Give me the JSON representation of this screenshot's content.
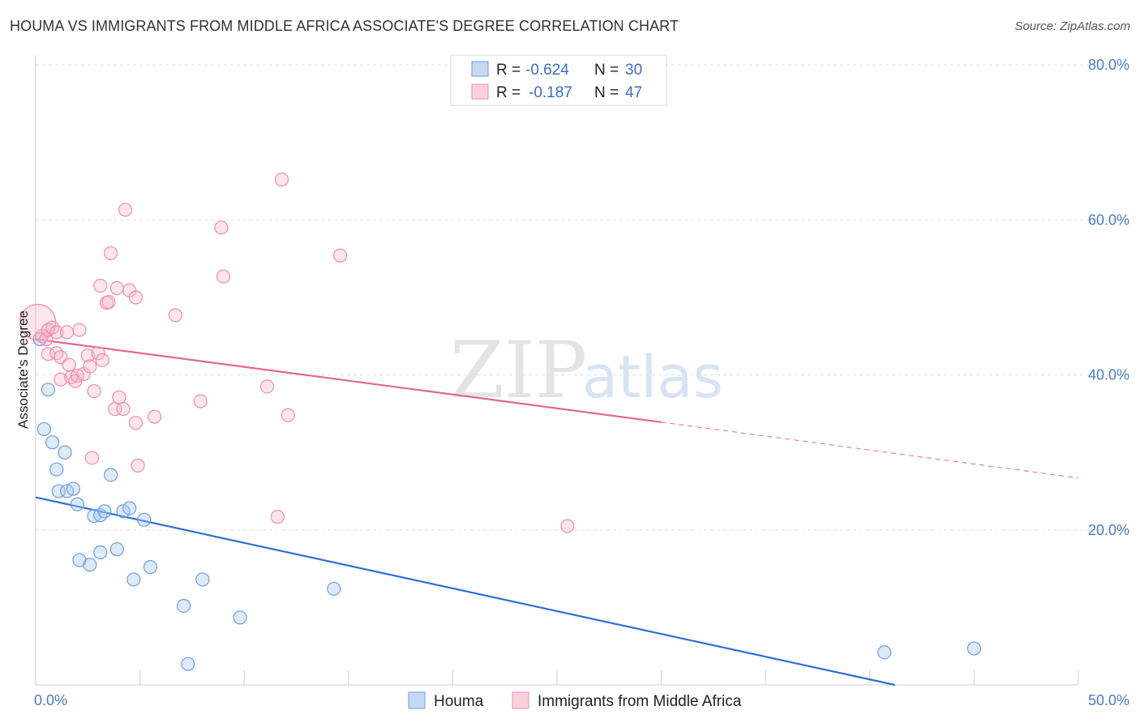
{
  "title": "HOUMA VS IMMIGRANTS FROM MIDDLE AFRICA ASSOCIATE'S DEGREE CORRELATION CHART",
  "source": "Source: ZipAtlas.com",
  "colors": {
    "houma": "#6b9de0",
    "houma_line": "#2f6fd0",
    "immigrants": "#f08cab",
    "immigrants_line": "#e0698f",
    "tick": "#4a7cc7"
  },
  "chart_data": {
    "type": "scatter",
    "ylabel": "Associate's Degree",
    "xlim": [
      0,
      50
    ],
    "ylim": [
      0,
      80
    ],
    "x_ticks": [
      "0.0%",
      "50.0%"
    ],
    "y_ticks": [
      {
        "value": 20,
        "label": "20.0%"
      },
      {
        "value": 40,
        "label": "40.0%"
      },
      {
        "value": 60,
        "label": "60.0%"
      },
      {
        "value": 80,
        "label": "80.0%"
      }
    ],
    "grid": true,
    "legend": {
      "position": "top-center",
      "entries": [
        {
          "r_label": "R =",
          "r_value": "-0.624",
          "n_label": "N =",
          "n_value": "30"
        },
        {
          "r_label": "R =",
          "r_value": "-0.187",
          "n_label": "N =",
          "n_value": "47"
        }
      ]
    },
    "series": [
      {
        "name": "Houma",
        "color": "#6b9de0",
        "trend": {
          "x0": 0,
          "y0": 24.2,
          "x1": 41.2,
          "y1": 0
        },
        "points": [
          {
            "x": 0.2,
            "y": 44.6
          },
          {
            "x": 0.6,
            "y": 38.1
          },
          {
            "x": 0.4,
            "y": 33.0
          },
          {
            "x": 0.8,
            "y": 31.3
          },
          {
            "x": 1.4,
            "y": 30.0
          },
          {
            "x": 1.0,
            "y": 27.8
          },
          {
            "x": 3.6,
            "y": 27.1
          },
          {
            "x": 1.1,
            "y": 25.0
          },
          {
            "x": 1.5,
            "y": 25.0
          },
          {
            "x": 1.8,
            "y": 25.3
          },
          {
            "x": 2.0,
            "y": 23.3
          },
          {
            "x": 2.8,
            "y": 21.8
          },
          {
            "x": 3.1,
            "y": 21.9
          },
          {
            "x": 3.3,
            "y": 22.4
          },
          {
            "x": 4.2,
            "y": 22.4
          },
          {
            "x": 4.5,
            "y": 22.8
          },
          {
            "x": 5.2,
            "y": 21.3
          },
          {
            "x": 3.1,
            "y": 17.1
          },
          {
            "x": 3.9,
            "y": 17.5
          },
          {
            "x": 2.1,
            "y": 16.1
          },
          {
            "x": 2.6,
            "y": 15.5
          },
          {
            "x": 5.5,
            "y": 15.2
          },
          {
            "x": 4.7,
            "y": 13.6
          },
          {
            "x": 8.0,
            "y": 13.6
          },
          {
            "x": 7.1,
            "y": 10.2
          },
          {
            "x": 9.8,
            "y": 8.7
          },
          {
            "x": 14.3,
            "y": 12.4
          },
          {
            "x": 7.3,
            "y": 2.7
          },
          {
            "x": 40.7,
            "y": 4.2
          },
          {
            "x": 45.0,
            "y": 4.7
          }
        ]
      },
      {
        "name": "Immigrants from Middle Africa",
        "color": "#f08cab",
        "trend": {
          "x0": 0,
          "y0": 44.6,
          "x1": 30.0,
          "y1": 33.9,
          "dash_x1": 50.0,
          "dash_y1": 26.7
        },
        "points": [
          {
            "x": 0.1,
            "y": 46.8,
            "big": true
          },
          {
            "x": 0.3,
            "y": 45.0
          },
          {
            "x": 0.5,
            "y": 44.6
          },
          {
            "x": 0.6,
            "y": 45.8
          },
          {
            "x": 0.8,
            "y": 46.1
          },
          {
            "x": 1.0,
            "y": 45.5
          },
          {
            "x": 0.6,
            "y": 42.7
          },
          {
            "x": 1.0,
            "y": 42.8
          },
          {
            "x": 1.2,
            "y": 42.3
          },
          {
            "x": 1.5,
            "y": 45.5
          },
          {
            "x": 2.1,
            "y": 45.8
          },
          {
            "x": 1.2,
            "y": 39.4
          },
          {
            "x": 1.6,
            "y": 41.3
          },
          {
            "x": 1.7,
            "y": 39.7
          },
          {
            "x": 1.9,
            "y": 39.2
          },
          {
            "x": 2.0,
            "y": 39.9
          },
          {
            "x": 2.3,
            "y": 40.1
          },
          {
            "x": 2.5,
            "y": 42.5
          },
          {
            "x": 2.6,
            "y": 41.1
          },
          {
            "x": 3.0,
            "y": 42.8
          },
          {
            "x": 3.2,
            "y": 41.9
          },
          {
            "x": 2.8,
            "y": 37.9
          },
          {
            "x": 3.4,
            "y": 49.3
          },
          {
            "x": 3.5,
            "y": 49.4
          },
          {
            "x": 3.1,
            "y": 51.5
          },
          {
            "x": 3.6,
            "y": 55.7
          },
          {
            "x": 3.9,
            "y": 51.2
          },
          {
            "x": 4.3,
            "y": 61.3
          },
          {
            "x": 4.5,
            "y": 50.9
          },
          {
            "x": 4.8,
            "y": 50.0
          },
          {
            "x": 3.8,
            "y": 35.6
          },
          {
            "x": 4.0,
            "y": 37.1
          },
          {
            "x": 4.2,
            "y": 35.6
          },
          {
            "x": 4.8,
            "y": 33.8
          },
          {
            "x": 5.7,
            "y": 34.6
          },
          {
            "x": 4.9,
            "y": 28.3
          },
          {
            "x": 2.7,
            "y": 29.3
          },
          {
            "x": 6.7,
            "y": 47.7
          },
          {
            "x": 7.9,
            "y": 36.6
          },
          {
            "x": 8.9,
            "y": 59.0
          },
          {
            "x": 9.0,
            "y": 52.7
          },
          {
            "x": 11.1,
            "y": 38.5
          },
          {
            "x": 11.6,
            "y": 21.7
          },
          {
            "x": 11.8,
            "y": 65.2
          },
          {
            "x": 12.1,
            "y": 34.8
          },
          {
            "x": 14.6,
            "y": 55.4
          },
          {
            "x": 25.5,
            "y": 20.5
          }
        ]
      }
    ]
  },
  "bottom_legend": [
    "Houma",
    "Immigrants from Middle Africa"
  ],
  "watermark": {
    "zip": "ZIP",
    "atlas": "atlas"
  }
}
